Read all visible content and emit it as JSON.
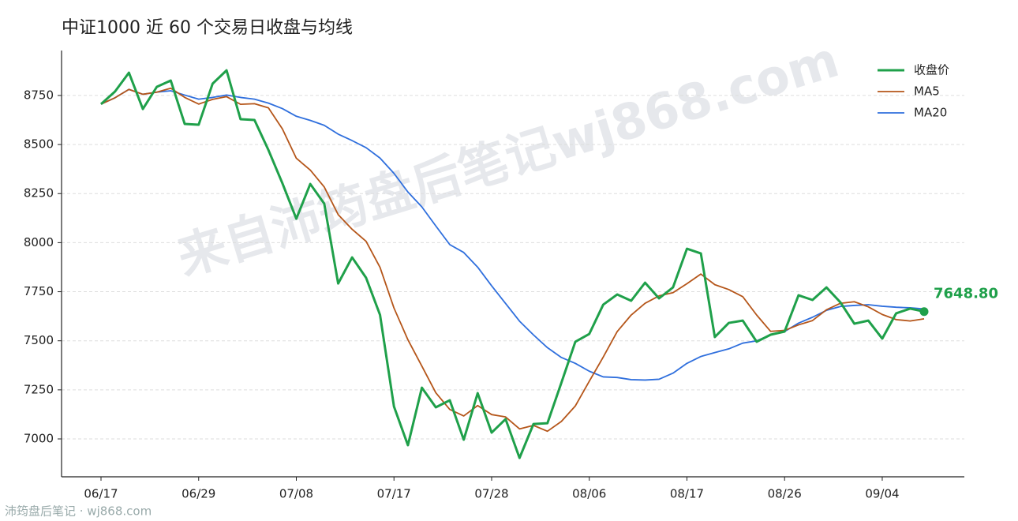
{
  "chart_data": {
    "type": "line",
    "title": "中证1000 近 60 个交易日收盘与均线",
    "watermark": "来自沛筠盘后笔记wj868.com",
    "footer": "沛筠盘后笔记 · wj868.com",
    "categories": [
      "06/17",
      null,
      null,
      null,
      null,
      null,
      null,
      "06/29",
      null,
      null,
      null,
      null,
      null,
      null,
      "07/08",
      null,
      null,
      null,
      null,
      null,
      null,
      "07/17",
      null,
      null,
      null,
      null,
      null,
      null,
      "07/28",
      null,
      null,
      null,
      null,
      null,
      null,
      "08/06",
      null,
      null,
      null,
      null,
      null,
      null,
      "08/17",
      null,
      null,
      null,
      null,
      null,
      null,
      "08/26",
      null,
      null,
      null,
      null,
      null,
      null,
      "09/04",
      null,
      null,
      null
    ],
    "series": [
      {
        "name": "收盘价",
        "color": "#1fa04a",
        "width": 3,
        "values": [
          8706,
          8770,
          8866,
          8681,
          8794,
          8826,
          8605,
          8601,
          8810,
          8878,
          8629,
          8625,
          8472,
          8303,
          8122,
          8299,
          8199,
          7792,
          7925,
          7821,
          7632,
          7165,
          6968,
          7261,
          7161,
          7197,
          6996,
          7233,
          7032,
          7101,
          6903,
          7076,
          7080,
          7286,
          7495,
          7535,
          7684,
          7736,
          7704,
          7796,
          7716,
          7772,
          7969,
          7945,
          7519,
          7591,
          7603,
          7495,
          7531,
          7547,
          7732,
          7708,
          7772,
          7696,
          7587,
          7603,
          7511,
          7640,
          7664,
          7648.8
        ],
        "value_labels": [
          null,
          null,
          null,
          null,
          null,
          null,
          null,
          null,
          null,
          null,
          null,
          null,
          null,
          null,
          null,
          null,
          null,
          null,
          null,
          null,
          null,
          null,
          null,
          null,
          null,
          null,
          null,
          null,
          null,
          null,
          null,
          null,
          null,
          null,
          null,
          null,
          null,
          null,
          null,
          null,
          null,
          null,
          null,
          null,
          null,
          null,
          null,
          null,
          null,
          null,
          null,
          null,
          null,
          null,
          null,
          null,
          null,
          null,
          null,
          "7648.80"
        ]
      },
      {
        "name": "MA5",
        "color": "#b5561a",
        "width": 1.8,
        "values": [
          8706,
          8738,
          8781,
          8756,
          8767,
          8787,
          8740,
          8706,
          8730,
          8744,
          8705,
          8708,
          8687,
          8580,
          8430,
          8370,
          8284,
          8143,
          8068,
          8007,
          7874,
          7667,
          7505,
          7371,
          7235,
          7150,
          7117,
          7170,
          7124,
          7112,
          7051,
          7069,
          7039,
          7089,
          7168,
          7294,
          7417,
          7547,
          7631,
          7691,
          7729,
          7745,
          7791,
          7840,
          7786,
          7761,
          7725,
          7631,
          7548,
          7553,
          7581,
          7603,
          7658,
          7691,
          7699,
          7673,
          7634,
          7608,
          7601,
          7612
        ]
      },
      {
        "name": "MA20",
        "color": "#2f6fdd",
        "width": 1.8,
        "values": [
          8706,
          8738,
          8781,
          8756,
          8767,
          8774,
          8752,
          8731,
          8740,
          8752,
          8740,
          8731,
          8711,
          8683,
          8644,
          8623,
          8598,
          8553,
          8520,
          8484,
          8431,
          8353,
          8258,
          8182,
          8085,
          7990,
          7950,
          7875,
          7780,
          7690,
          7600,
          7530,
          7465,
          7415,
          7385,
          7345,
          7316,
          7313,
          7302,
          7300,
          7304,
          7335,
          7385,
          7420,
          7440,
          7459,
          7488,
          7500,
          7530,
          7547,
          7590,
          7620,
          7655,
          7675,
          7680,
          7684,
          7676,
          7671,
          7668,
          7662
        ]
      }
    ],
    "ylim": [
      6807,
      8979
    ],
    "yticks": [
      7000,
      7250,
      7500,
      7750,
      8000,
      8250,
      8500,
      8750
    ],
    "grid": true,
    "legend": "top-right"
  }
}
